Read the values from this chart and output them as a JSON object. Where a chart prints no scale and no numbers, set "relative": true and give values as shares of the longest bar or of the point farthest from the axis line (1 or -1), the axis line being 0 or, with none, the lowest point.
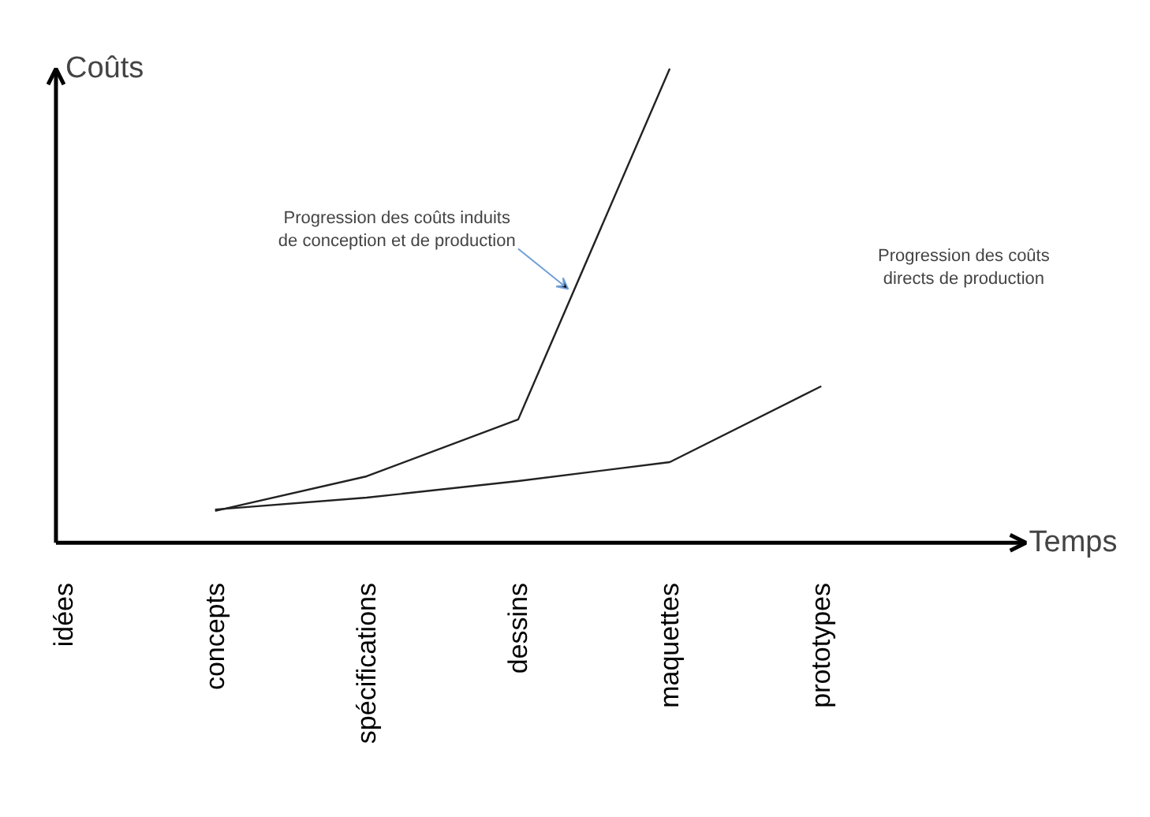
{
  "chart_data": {
    "type": "line",
    "relative": true,
    "xlabel": "Temps",
    "ylabel": "Coûts",
    "categories": [
      "idées",
      "concepts",
      "spécifications",
      "dessins",
      "maquettes",
      "prototypes"
    ],
    "series": [
      {
        "color": "#222222",
        "values": [
          null,
          0.067,
          0.14,
          0.26,
          1.0,
          null
        ]
      },
      {
        "color": "#222222",
        "values": [
          null,
          0.07,
          0.095,
          0.13,
          0.17,
          0.33
        ]
      }
    ],
    "annotations": [
      "Progression des coûts induits\nde conception et de production",
      "Progression des coûts\ndirects de production"
    ],
    "grid": false,
    "marker": "none",
    "line_style": "solid"
  }
}
